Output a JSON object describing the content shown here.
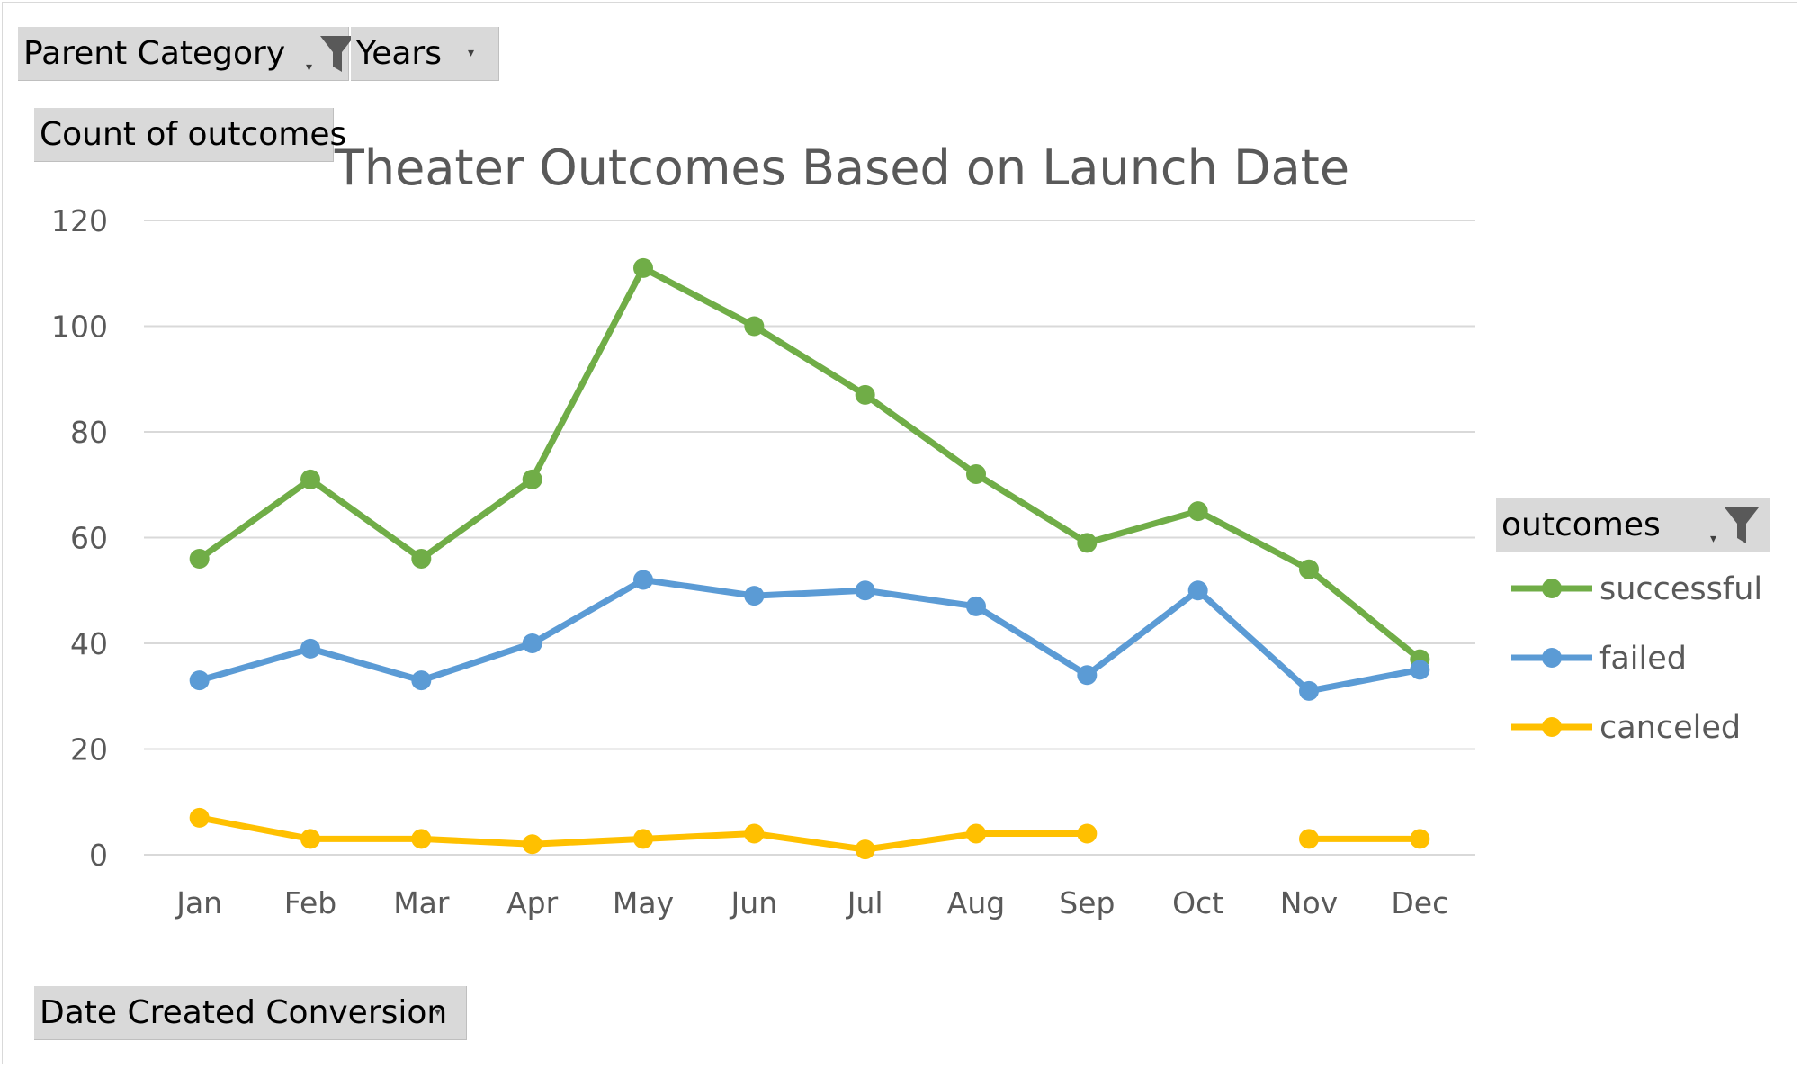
{
  "filters": {
    "parent_category": "Parent Category",
    "years": "Years",
    "count_field": "Count of outcomes",
    "axis_field": "Date Created Conversion",
    "legend_field": "outcomes"
  },
  "chart_data": {
    "type": "line",
    "title": "Theater Outcomes Based on Launch Date",
    "xlabel": "",
    "ylabel": "",
    "categories": [
      "Jan",
      "Feb",
      "Mar",
      "Apr",
      "May",
      "Jun",
      "Jul",
      "Aug",
      "Sep",
      "Oct",
      "Nov",
      "Dec"
    ],
    "ylim": [
      0,
      120
    ],
    "yticks": [
      0,
      20,
      40,
      60,
      80,
      100,
      120
    ],
    "grid": true,
    "legend_position": "right",
    "series": [
      {
        "name": "successful",
        "color": "#70ad47",
        "values": [
          56,
          71,
          56,
          71,
          111,
          100,
          87,
          72,
          59,
          65,
          54,
          37
        ]
      },
      {
        "name": "failed",
        "color": "#5b9bd5",
        "values": [
          33,
          39,
          33,
          40,
          52,
          49,
          50,
          47,
          34,
          50,
          31,
          35
        ]
      },
      {
        "name": "canceled",
        "color": "#ffc000",
        "values": [
          7,
          3,
          3,
          2,
          3,
          4,
          1,
          4,
          4,
          null,
          3,
          3
        ]
      }
    ]
  }
}
